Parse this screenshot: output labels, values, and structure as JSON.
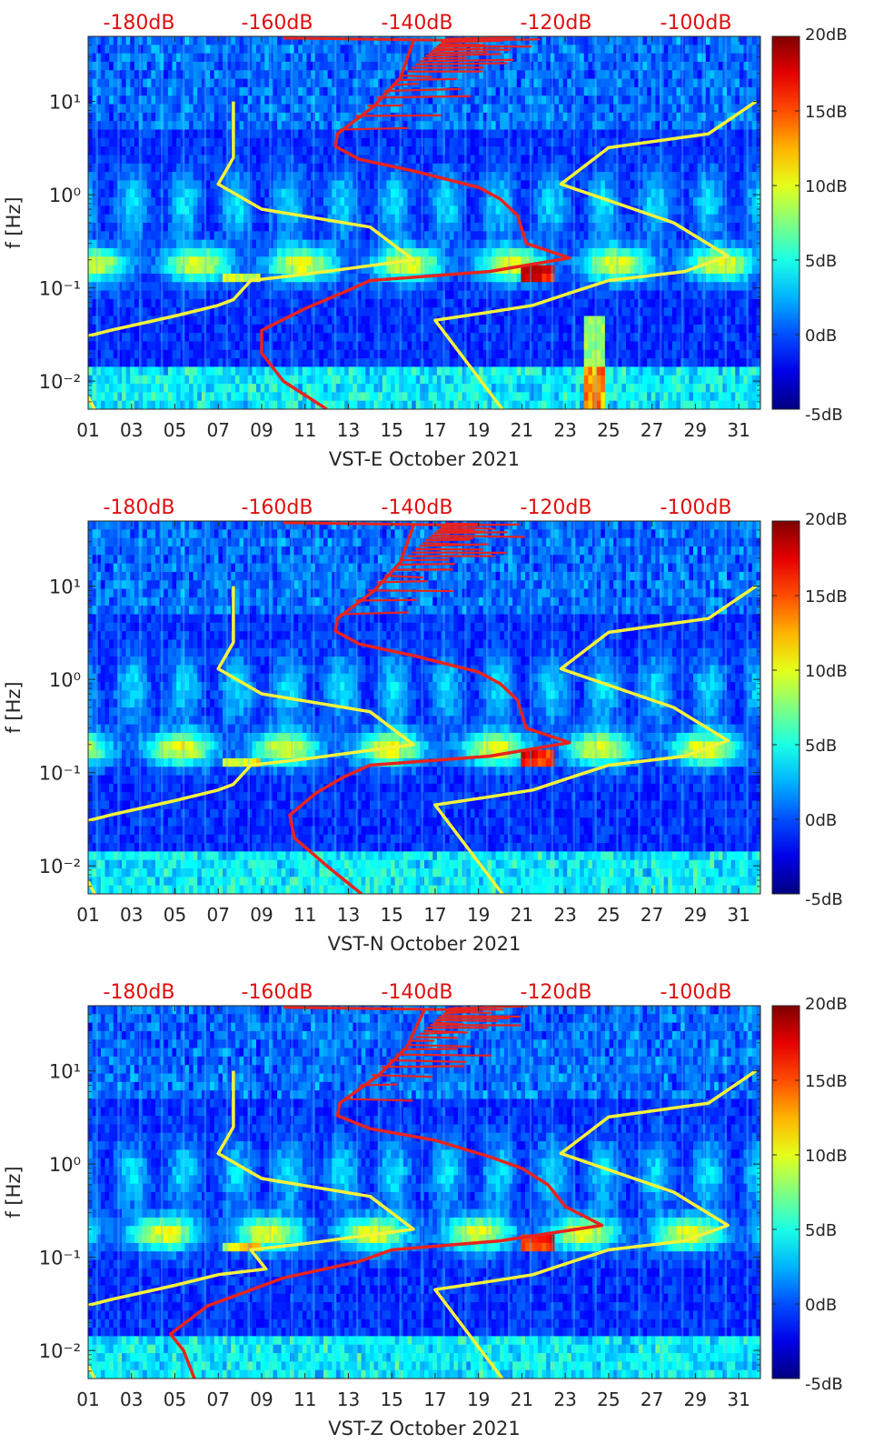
{
  "chart_data": [
    {
      "type": "heatmap",
      "title": "",
      "xlabel": "VST-E October 2021",
      "ylabel": "f [Hz]",
      "xlim": [
        1,
        32
      ],
      "ylim": [
        0.005,
        50
      ],
      "yscale": "log",
      "x_ticks": [
        "01",
        "03",
        "05",
        "07",
        "09",
        "11",
        "13",
        "15",
        "17",
        "19",
        "21",
        "23",
        "25",
        "27",
        "29",
        "31"
      ],
      "y_ticks": [
        {
          "value": 0.01,
          "label": "10⁻²"
        },
        {
          "value": 0.1,
          "label": "10⁻¹"
        },
        {
          "value": 1,
          "label": "10⁰"
        },
        {
          "value": 10,
          "label": "10¹"
        }
      ],
      "top_labels": [
        "-180dB",
        "-160dB",
        "-140dB",
        "-120dB",
        "-100dB"
      ],
      "colorbar": {
        "min": -5,
        "max": 20,
        "ticks": [
          "20dB",
          "15dB",
          "10dB",
          "5dB",
          "0dB",
          "-5dB"
        ]
      },
      "noise_models": {
        "left_yellow": [
          [
            7.7,
            10
          ],
          [
            7.7,
            2.5
          ],
          [
            7.0,
            1.3
          ],
          [
            9,
            0.7
          ],
          [
            14,
            0.45
          ],
          [
            16,
            0.2
          ],
          [
            11,
            0.14
          ],
          [
            8.5,
            0.12
          ],
          [
            7.7,
            0.075
          ],
          [
            7,
            0.065
          ],
          [
            5,
            0.05
          ],
          [
            2,
            0.035
          ],
          [
            0.9,
            0.03
          ],
          [
            0.2,
            0.015
          ],
          [
            1.3,
            0.005
          ]
        ],
        "right_yellow": [
          [
            31.8,
            10
          ],
          [
            29.6,
            4.5
          ],
          [
            25,
            3.2
          ],
          [
            22.8,
            1.3
          ],
          [
            28,
            0.5
          ],
          [
            30.5,
            0.22
          ],
          [
            28.5,
            0.15
          ],
          [
            25,
            0.12
          ],
          [
            23,
            0.085
          ],
          [
            21.5,
            0.065
          ],
          [
            19.5,
            0.055
          ],
          [
            17,
            0.045
          ],
          [
            20.1,
            0.005
          ]
        ],
        "red_series": [
          [
            16,
            45
          ],
          [
            15.4,
            18
          ],
          [
            14.2,
            9
          ],
          [
            12.5,
            4.5
          ],
          [
            12.4,
            3.3
          ],
          [
            13.5,
            2.4
          ],
          [
            16,
            1.8
          ],
          [
            19,
            1.2
          ],
          [
            20,
            0.9
          ],
          [
            20.8,
            0.6
          ],
          [
            21.2,
            0.3
          ],
          [
            23.2,
            0.21
          ],
          [
            19.5,
            0.15
          ],
          [
            14,
            0.12
          ],
          [
            12.8,
            0.09
          ],
          [
            11,
            0.06
          ],
          [
            9,
            0.035
          ],
          [
            9,
            0.02
          ],
          [
            10,
            0.01
          ],
          [
            12,
            0.005
          ]
        ]
      }
    },
    {
      "type": "heatmap",
      "title": "",
      "xlabel": "VST-N October 2021",
      "ylabel": "f [Hz]",
      "xlim": [
        1,
        32
      ],
      "ylim": [
        0.005,
        50
      ],
      "yscale": "log",
      "x_ticks": [
        "01",
        "03",
        "05",
        "07",
        "09",
        "11",
        "13",
        "15",
        "17",
        "19",
        "21",
        "23",
        "25",
        "27",
        "29",
        "31"
      ],
      "y_ticks": [
        {
          "value": 0.01,
          "label": "10⁻²"
        },
        {
          "value": 0.1,
          "label": "10⁻¹"
        },
        {
          "value": 1,
          "label": "10⁰"
        },
        {
          "value": 10,
          "label": "10¹"
        }
      ],
      "top_labels": [
        "-180dB",
        "-160dB",
        "-140dB",
        "-120dB",
        "-100dB"
      ],
      "colorbar": {
        "min": -5,
        "max": 20,
        "ticks": [
          "20dB",
          "15dB",
          "10dB",
          "5dB",
          "0dB",
          "-5dB"
        ]
      },
      "noise_models": {
        "left_yellow": [
          [
            7.7,
            10
          ],
          [
            7.7,
            2.5
          ],
          [
            7.0,
            1.3
          ],
          [
            9,
            0.7
          ],
          [
            14,
            0.45
          ],
          [
            16,
            0.2
          ],
          [
            11,
            0.14
          ],
          [
            8.5,
            0.12
          ],
          [
            7.7,
            0.075
          ],
          [
            7,
            0.065
          ],
          [
            5,
            0.05
          ],
          [
            2,
            0.035
          ],
          [
            0.9,
            0.03
          ],
          [
            0.2,
            0.015
          ],
          [
            1.3,
            0.005
          ]
        ],
        "right_yellow": [
          [
            31.8,
            10
          ],
          [
            29.6,
            4.5
          ],
          [
            25,
            3.2
          ],
          [
            22.8,
            1.3
          ],
          [
            28,
            0.5
          ],
          [
            30.5,
            0.22
          ],
          [
            28.5,
            0.15
          ],
          [
            25,
            0.12
          ],
          [
            23,
            0.085
          ],
          [
            21.5,
            0.065
          ],
          [
            19.5,
            0.055
          ],
          [
            17,
            0.045
          ],
          [
            20.1,
            0.005
          ]
        ],
        "red_series": [
          [
            16,
            45
          ],
          [
            15.4,
            18
          ],
          [
            14.2,
            9
          ],
          [
            12.5,
            4.5
          ],
          [
            12.4,
            3.3
          ],
          [
            13.5,
            2.4
          ],
          [
            16,
            1.8
          ],
          [
            19,
            1.2
          ],
          [
            20,
            0.9
          ],
          [
            20.8,
            0.6
          ],
          [
            21.2,
            0.3
          ],
          [
            23.2,
            0.21
          ],
          [
            19.5,
            0.15
          ],
          [
            14,
            0.12
          ],
          [
            12.8,
            0.09
          ],
          [
            11.5,
            0.06
          ],
          [
            10.3,
            0.035
          ],
          [
            10.5,
            0.02
          ],
          [
            12,
            0.01
          ],
          [
            13.6,
            0.005
          ]
        ]
      }
    },
    {
      "type": "heatmap",
      "title": "",
      "xlabel": "VST-Z October 2021",
      "ylabel": "f [Hz]",
      "xlim": [
        1,
        32
      ],
      "ylim": [
        0.005,
        50
      ],
      "yscale": "log",
      "x_ticks": [
        "01",
        "03",
        "05",
        "07",
        "09",
        "11",
        "13",
        "15",
        "17",
        "19",
        "21",
        "23",
        "25",
        "27",
        "29",
        "31"
      ],
      "y_ticks": [
        {
          "value": 0.01,
          "label": "10⁻²"
        },
        {
          "value": 0.1,
          "label": "10⁻¹"
        },
        {
          "value": 1,
          "label": "10⁰"
        },
        {
          "value": 10,
          "label": "10¹"
        }
      ],
      "top_labels": [
        "-180dB",
        "-160dB",
        "-140dB",
        "-120dB",
        "-100dB"
      ],
      "colorbar": {
        "min": -5,
        "max": 20,
        "ticks": [
          "20dB",
          "15dB",
          "10dB",
          "5dB",
          "0dB",
          "-5dB"
        ]
      },
      "noise_models": {
        "left_yellow": [
          [
            7.7,
            10
          ],
          [
            7.7,
            2.5
          ],
          [
            7.0,
            1.3
          ],
          [
            9,
            0.7
          ],
          [
            14,
            0.45
          ],
          [
            16,
            0.2
          ],
          [
            11,
            0.14
          ],
          [
            8.5,
            0.12
          ],
          [
            9.2,
            0.075
          ],
          [
            7,
            0.065
          ],
          [
            5,
            0.05
          ],
          [
            2,
            0.035
          ],
          [
            0.9,
            0.03
          ],
          [
            0.2,
            0.015
          ],
          [
            1.3,
            0.005
          ]
        ],
        "right_yellow": [
          [
            31.8,
            10
          ],
          [
            29.6,
            4.5
          ],
          [
            25,
            3.2
          ],
          [
            22.8,
            1.3
          ],
          [
            28,
            0.5
          ],
          [
            30.5,
            0.22
          ],
          [
            28.5,
            0.15
          ],
          [
            25,
            0.12
          ],
          [
            23,
            0.085
          ],
          [
            21.5,
            0.065
          ],
          [
            19.5,
            0.055
          ],
          [
            17,
            0.045
          ],
          [
            20.1,
            0.005
          ]
        ],
        "red_series": [
          [
            16.5,
            45
          ],
          [
            15.7,
            18
          ],
          [
            14.4,
            9
          ],
          [
            12.6,
            4.5
          ],
          [
            12.5,
            3.3
          ],
          [
            14,
            2.4
          ],
          [
            17,
            1.8
          ],
          [
            19.5,
            1.2
          ],
          [
            21,
            0.9
          ],
          [
            22.2,
            0.6
          ],
          [
            23,
            0.35
          ],
          [
            24.7,
            0.22
          ],
          [
            20,
            0.15
          ],
          [
            15,
            0.12
          ],
          [
            13.5,
            0.09
          ],
          [
            10,
            0.06
          ],
          [
            6.5,
            0.03
          ],
          [
            4.8,
            0.015
          ],
          [
            5.4,
            0.01
          ],
          [
            5.9,
            0.005
          ]
        ]
      }
    }
  ]
}
